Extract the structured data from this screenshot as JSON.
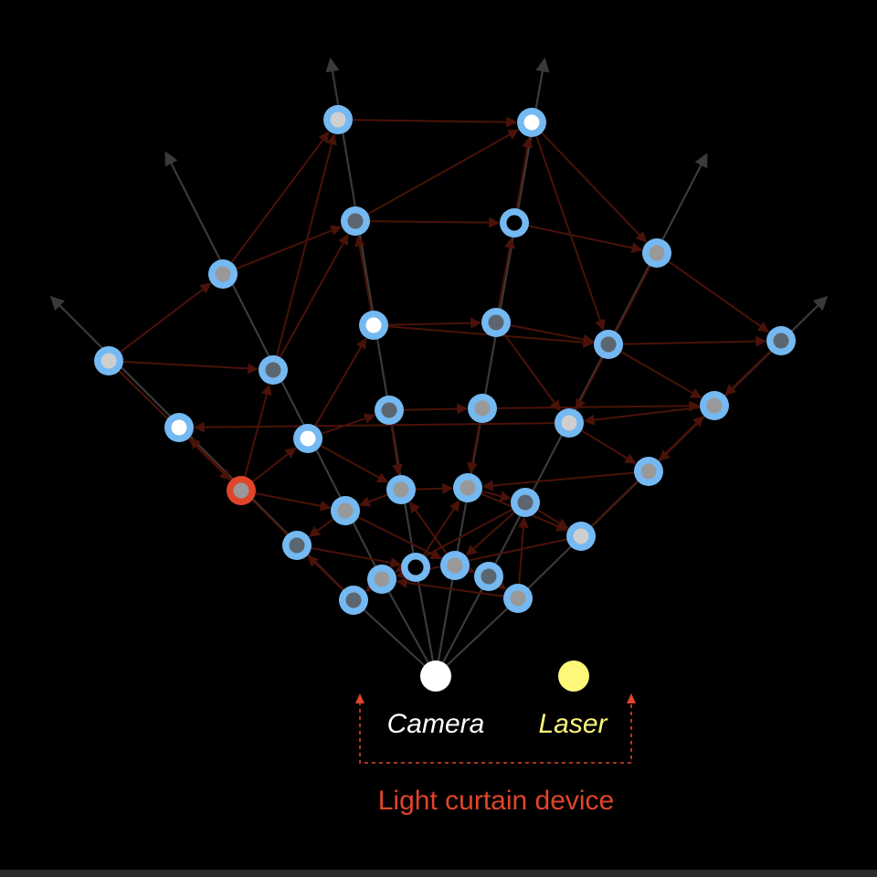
{
  "labels": {
    "camera": "Camera",
    "laser": "Laser",
    "device": "Light curtain device"
  },
  "colors": {
    "background": "#000000",
    "ray": "#3a3a3a",
    "edge": "#4a1208",
    "node_ring": "#74b9f2",
    "node_ring_selected": "#e0452a",
    "camera": "#ffffff",
    "laser": "#fdf77a",
    "device_bracket": "#e0452a",
    "device_label": "#e0452a",
    "laser_label": "#fdf77a",
    "camera_label": "#ffffff",
    "fill_white": "#ffffff",
    "fill_light": "#cfcfcf",
    "fill_gray": "#999999",
    "fill_dark": "#5c6670",
    "fill_black": "#000000"
  },
  "nodes": [
    {
      "id": "n1",
      "fill": "light"
    },
    {
      "id": "n2",
      "fill": "white"
    },
    {
      "id": "n3",
      "fill": "dark"
    },
    {
      "id": "n4",
      "fill": "black"
    },
    {
      "id": "n5",
      "fill": "gray"
    },
    {
      "id": "n6",
      "fill": "light"
    },
    {
      "id": "n7",
      "fill": "dark"
    },
    {
      "id": "n8",
      "fill": "white"
    },
    {
      "id": "n9",
      "fill": "dark"
    },
    {
      "id": "n10",
      "fill": "dark"
    },
    {
      "id": "n11",
      "fill": "gray"
    },
    {
      "id": "n12",
      "fill": "dark"
    },
    {
      "id": "n13",
      "fill": "gray"
    },
    {
      "id": "n14",
      "fill": "white"
    },
    {
      "id": "n15",
      "fill": "dark"
    },
    {
      "id": "n16",
      "fill": "gray"
    },
    {
      "id": "n17",
      "fill": "light"
    },
    {
      "id": "n18",
      "fill": "gray",
      "selected": true
    },
    {
      "id": "n19",
      "fill": "gray"
    },
    {
      "id": "n20",
      "fill": "gray"
    },
    {
      "id": "n21",
      "fill": "gray"
    },
    {
      "id": "n22",
      "fill": "gray"
    },
    {
      "id": "n23",
      "fill": "dark"
    },
    {
      "id": "n24",
      "fill": "light"
    },
    {
      "id": "n25",
      "fill": "dark"
    },
    {
      "id": "n26",
      "fill": "gray"
    },
    {
      "id": "n27",
      "fill": "black"
    },
    {
      "id": "n28",
      "fill": "gray"
    },
    {
      "id": "n29",
      "fill": "dark"
    },
    {
      "id": "n30",
      "fill": "gray"
    },
    {
      "id": "n31",
      "fill": "dark"
    },
    {
      "id": "n32",
      "fill": "white"
    },
    {
      "id": "n33",
      "fill": "light"
    },
    {
      "id": "n34",
      "fill": "gray"
    },
    {
      "id": "n35",
      "fill": "dark"
    },
    {
      "id": "n36",
      "fill": "light"
    }
  ],
  "edges": [
    [
      "n1",
      "n2"
    ],
    [
      "n3",
      "n2"
    ],
    [
      "n3",
      "n4"
    ],
    [
      "n5",
      "n1"
    ],
    [
      "n5",
      "n3"
    ],
    [
      "n6",
      "n5"
    ],
    [
      "n6",
      "n7"
    ],
    [
      "n7",
      "n3"
    ],
    [
      "n7",
      "n1"
    ],
    [
      "n8",
      "n3"
    ],
    [
      "n8",
      "n9"
    ],
    [
      "n9",
      "n4"
    ],
    [
      "n8",
      "n10"
    ],
    [
      "n4",
      "n2"
    ],
    [
      "n4",
      "n11"
    ],
    [
      "n2",
      "n11"
    ],
    [
      "n2",
      "n10"
    ],
    [
      "n11",
      "n12"
    ],
    [
      "n10",
      "n12"
    ],
    [
      "n10",
      "n13"
    ],
    [
      "n12",
      "n13"
    ],
    [
      "n9",
      "n10"
    ],
    [
      "n14",
      "n8"
    ],
    [
      "n14",
      "n15"
    ],
    [
      "n15",
      "n16"
    ],
    [
      "n16",
      "n13"
    ],
    [
      "n13",
      "n17"
    ],
    [
      "n9",
      "n17"
    ],
    [
      "n11",
      "n17"
    ],
    [
      "n12",
      "n19"
    ],
    [
      "n18",
      "n7"
    ],
    [
      "n18",
      "n14"
    ],
    [
      "n18",
      "n20"
    ],
    [
      "n6",
      "n18"
    ],
    [
      "n14",
      "n21"
    ],
    [
      "n15",
      "n21"
    ],
    [
      "n21",
      "n20"
    ],
    [
      "n21",
      "n22"
    ],
    [
      "n16",
      "n22"
    ],
    [
      "n22",
      "n23"
    ],
    [
      "n22",
      "n24"
    ],
    [
      "n23",
      "n24"
    ],
    [
      "n24",
      "n13"
    ],
    [
      "n19",
      "n22"
    ],
    [
      "n23",
      "n26"
    ],
    [
      "n24",
      "n26"
    ],
    [
      "n20",
      "n25"
    ],
    [
      "n25",
      "n27"
    ],
    [
      "n27",
      "n22"
    ],
    [
      "n20",
      "n28"
    ],
    [
      "n28",
      "n21"
    ],
    [
      "n23",
      "n28"
    ],
    [
      "n28",
      "n29"
    ],
    [
      "n29",
      "n30"
    ],
    [
      "n30",
      "n26"
    ],
    [
      "n26",
      "n31"
    ],
    [
      "n31",
      "n32"
    ],
    [
      "n17",
      "n32"
    ],
    [
      "n33",
      "n19"
    ],
    [
      "n35",
      "n21"
    ],
    [
      "n34",
      "n23"
    ],
    [
      "n36",
      "n25"
    ]
  ]
}
